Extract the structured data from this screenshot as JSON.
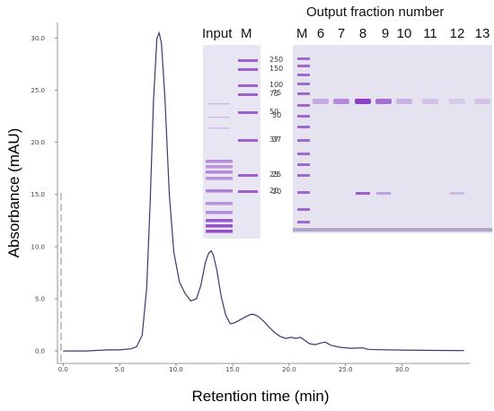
{
  "chart_data": {
    "type": "line",
    "xlabel": "Retention time (min)",
    "ylabel": "Absorbance (mAU)",
    "xlim": [
      -0.5,
      36
    ],
    "ylim": [
      -1.2,
      31.5
    ],
    "x_ticks": [
      0.0,
      5.0,
      10.0,
      15.0,
      20.0,
      25.0,
      30.0
    ],
    "x_tick_labels": [
      "0.0",
      "5.0",
      "10.0",
      "15.0",
      "20.0",
      "25.0",
      "30.0"
    ],
    "y_ticks": [
      0.0,
      5.0,
      10.0,
      15.0,
      20.0,
      25.0,
      30.0
    ],
    "y_tick_labels": [
      "0.0",
      "5.0",
      "10.0",
      "15.0",
      "20.0",
      "25.0",
      "30.0"
    ],
    "grid": false,
    "line_color": "#3a3a6e",
    "series": [
      {
        "x": [
          0,
          1,
          2,
          3,
          4,
          5,
          6,
          6.5,
          7,
          7.4,
          7.7,
          8.0,
          8.3,
          8.5,
          8.7,
          9.0,
          9.4,
          9.8,
          10.3,
          10.8,
          11.3,
          11.8,
          12.2,
          12.6,
          12.9,
          13.1,
          13.3,
          13.6,
          14.0,
          14.4,
          14.8,
          15.2,
          15.7,
          16.2,
          16.6,
          16.9,
          17.3,
          17.8,
          18.3,
          18.8,
          19.2,
          19.7,
          20.2,
          20.6,
          21.0,
          21.4,
          21.8,
          22.3,
          22.8,
          23.2,
          23.7,
          24.5,
          25.5,
          26.5,
          27.0,
          28.0,
          30.0,
          33.0,
          35.5
        ],
        "y": [
          0.0,
          0.0,
          0.0,
          0.05,
          0.1,
          0.1,
          0.2,
          0.4,
          1.5,
          6.0,
          14.0,
          24.0,
          30.0,
          30.5,
          29.5,
          24.5,
          15.0,
          9.5,
          6.6,
          5.5,
          4.8,
          5.0,
          6.3,
          8.5,
          9.4,
          9.6,
          9.2,
          7.8,
          5.2,
          3.4,
          2.6,
          2.7,
          3.0,
          3.3,
          3.5,
          3.5,
          3.3,
          2.8,
          2.2,
          1.7,
          1.4,
          1.2,
          1.3,
          1.2,
          1.3,
          1.0,
          0.7,
          0.6,
          0.75,
          0.85,
          0.55,
          0.35,
          0.25,
          0.3,
          0.15,
          0.12,
          0.08,
          0.05,
          0.03
        ]
      }
    ]
  },
  "gels": {
    "input_header": "Input",
    "input_marker_header": "M",
    "output_title": "Output fraction number",
    "output_marker_header": "M",
    "fraction_labels": [
      "6",
      "7",
      "8",
      "9",
      "10",
      "11",
      "12",
      "13"
    ],
    "mw_labels": [
      "250",
      "150",
      "100",
      "75",
      "50",
      "37",
      "25",
      "20"
    ],
    "output_mw_labels": [
      "75",
      "50",
      "37",
      "25",
      "20"
    ],
    "stain_color": "#8a3fc4",
    "gel_background": "#e6e3f1"
  }
}
